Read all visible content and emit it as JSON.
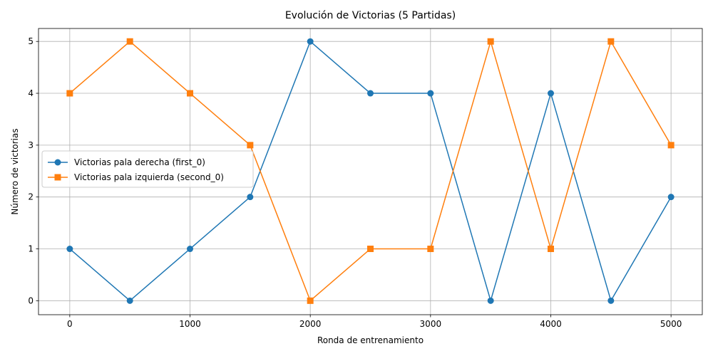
{
  "chart_data": {
    "type": "line",
    "title": "Evolución de Victorias (5 Partidas)",
    "xlabel": "Ronda de entrenamiento",
    "ylabel": "Número de victorias",
    "x": [
      0,
      500,
      1000,
      1500,
      2000,
      2500,
      3000,
      3500,
      4000,
      4500,
      5000
    ],
    "xlim": [
      -260,
      5260
    ],
    "ylim": [
      -0.27,
      5.25
    ],
    "xticks": [
      0,
      1000,
      2000,
      3000,
      4000,
      5000
    ],
    "yticks": [
      0,
      1,
      2,
      3,
      4,
      5
    ],
    "grid": true,
    "legend_position": "center-left",
    "series": [
      {
        "name": "Victorias pala derecha (first_0)",
        "values": [
          1,
          0,
          1,
          2,
          5,
          4,
          4,
          0,
          4,
          0,
          2
        ],
        "color": "#1f77b4",
        "marker": "circle"
      },
      {
        "name": "Victorias pala izquierda (second_0)",
        "values": [
          4,
          5,
          4,
          3,
          0,
          1,
          1,
          5,
          1,
          5,
          3
        ],
        "color": "#ff7f0e",
        "marker": "square"
      }
    ]
  }
}
